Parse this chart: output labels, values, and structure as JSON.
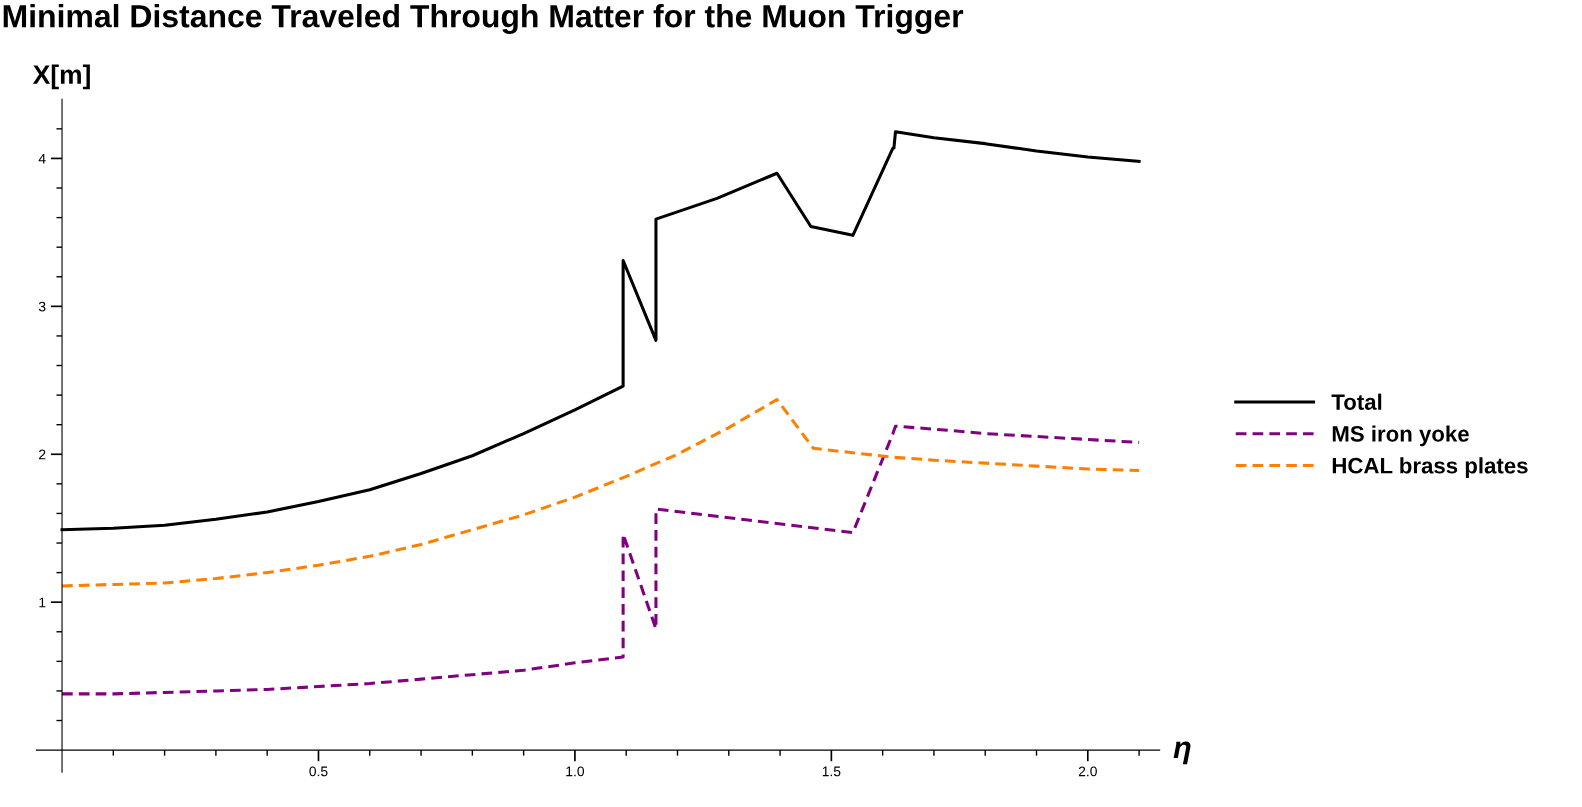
{
  "chart_data": {
    "type": "line",
    "title": "Minimal Distance Traveled Through Matter for the Muon Trigger",
    "xlabel": "η",
    "ylabel": "X[m]",
    "xlim": [
      -0.05,
      2.14
    ],
    "ylim": [
      -0.15,
      4.4
    ],
    "xticks": [
      {
        "value": 0.1,
        "label": null
      },
      {
        "value": 0.2,
        "label": null
      },
      {
        "value": 0.3,
        "label": null
      },
      {
        "value": 0.4,
        "label": null
      },
      {
        "value": 0.5,
        "label": "0.5"
      },
      {
        "value": 0.6,
        "label": null
      },
      {
        "value": 0.7,
        "label": null
      },
      {
        "value": 0.8,
        "label": null
      },
      {
        "value": 0.9,
        "label": null
      },
      {
        "value": 1.0,
        "label": "1.0"
      },
      {
        "value": 1.1,
        "label": null
      },
      {
        "value": 1.2,
        "label": null
      },
      {
        "value": 1.3,
        "label": null
      },
      {
        "value": 1.4,
        "label": null
      },
      {
        "value": 1.5,
        "label": "1.5"
      },
      {
        "value": 1.6,
        "label": null
      },
      {
        "value": 1.7,
        "label": null
      },
      {
        "value": 1.8,
        "label": null
      },
      {
        "value": 1.9,
        "label": null
      },
      {
        "value": 2.0,
        "label": "2.0"
      },
      {
        "value": 2.1,
        "label": null
      }
    ],
    "yticks": [
      {
        "value": 0.2,
        "label": null
      },
      {
        "value": 0.4,
        "label": null
      },
      {
        "value": 0.6,
        "label": null
      },
      {
        "value": 0.8,
        "label": null
      },
      1,
      {
        "value": 1.2,
        "label": null
      },
      {
        "value": 1.4,
        "label": null
      },
      {
        "value": 1.6,
        "label": null
      },
      {
        "value": 1.8,
        "label": null
      },
      2,
      {
        "value": 2.2,
        "label": null
      },
      {
        "value": 2.4,
        "label": null
      },
      {
        "value": 2.6,
        "label": null
      },
      {
        "value": 2.8,
        "label": null
      },
      3,
      {
        "value": 3.2,
        "label": null
      },
      {
        "value": 3.4,
        "label": null
      },
      {
        "value": 3.6,
        "label": null
      },
      {
        "value": 3.8,
        "label": null
      },
      4,
      {
        "value": 4.2,
        "label": null
      }
    ],
    "grid": false,
    "legend": "right",
    "series": [
      {
        "name": "Total",
        "color": "#000000",
        "line_style": "solid",
        "x": [
          0,
          0.1,
          0.2,
          0.3,
          0.4,
          0.5,
          0.6,
          0.7,
          0.8,
          0.9,
          1.0,
          1.094,
          1.094,
          1.158,
          1.158,
          1.277,
          1.394,
          1.46,
          1.542,
          1.62,
          1.622,
          1.625,
          1.7,
          1.8,
          1.9,
          2.0,
          2.1
        ],
        "values": [
          1.49,
          1.5,
          1.52,
          1.56,
          1.61,
          1.68,
          1.76,
          1.87,
          1.99,
          2.14,
          2.3,
          2.46,
          3.31,
          2.77,
          3.59,
          3.73,
          3.9,
          3.54,
          3.48,
          4.07,
          4.07,
          4.18,
          4.14,
          4.1,
          4.05,
          4.01,
          3.98
        ]
      },
      {
        "name": "MS iron yoke",
        "color": "#800080",
        "line_style": "dashed",
        "x": [
          0,
          0.1,
          0.2,
          0.3,
          0.4,
          0.5,
          0.6,
          0.7,
          0.8,
          0.9,
          1.0,
          1.094,
          1.094,
          1.158,
          1.158,
          1.542,
          1.62,
          1.625,
          1.7,
          1.8,
          1.9,
          2.0,
          2.1
        ],
        "values": [
          0.38,
          0.38,
          0.39,
          0.4,
          0.41,
          0.43,
          0.45,
          0.48,
          0.51,
          0.54,
          0.59,
          0.63,
          1.46,
          0.82,
          1.63,
          1.47,
          2.14,
          2.19,
          2.17,
          2.14,
          2.12,
          2.1,
          2.08
        ]
      },
      {
        "name": "HCAL brass plates",
        "color": "#ff8000",
        "line_style": "dashed",
        "x": [
          0,
          0.1,
          0.2,
          0.3,
          0.4,
          0.5,
          0.6,
          0.7,
          0.8,
          0.9,
          1.0,
          1.05,
          1.1,
          1.2,
          1.3,
          1.394,
          1.465,
          1.62,
          1.7,
          1.8,
          1.9,
          2.0,
          2.1
        ],
        "values": [
          1.11,
          1.12,
          1.13,
          1.16,
          1.2,
          1.25,
          1.31,
          1.39,
          1.49,
          1.59,
          1.71,
          1.78,
          1.85,
          2.0,
          2.18,
          2.37,
          2.04,
          1.98,
          1.96,
          1.94,
          1.92,
          1.9,
          1.89
        ]
      }
    ]
  }
}
